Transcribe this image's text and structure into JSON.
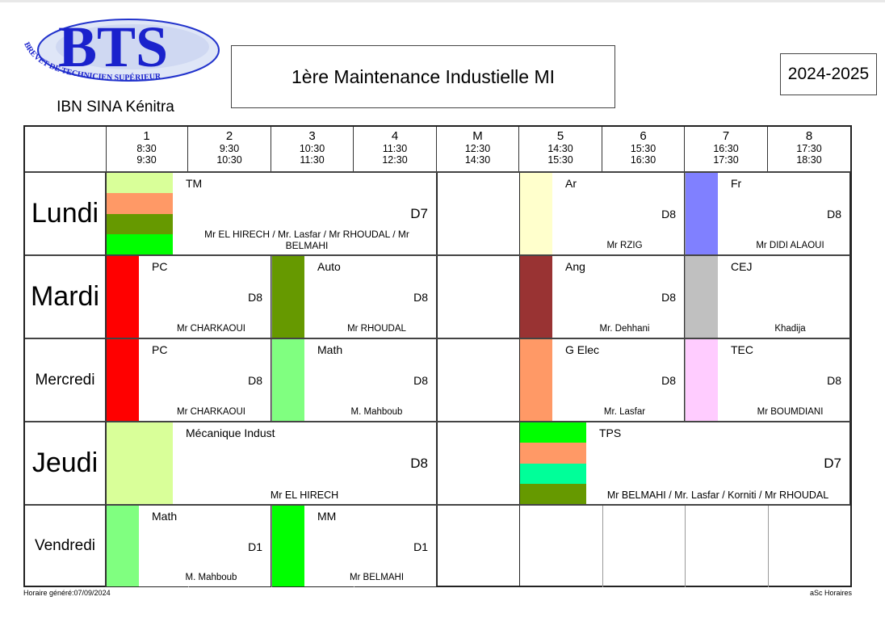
{
  "header": {
    "logo_text": "BTS",
    "logo_subtitle": "BREVET DE TECHNICIEN SUPÉRIEUR",
    "school": "IBN SINA Kénitra",
    "title": "1ère Maintenance Industielle MI",
    "year": "2024-2025"
  },
  "periods": [
    {
      "num": "1",
      "start": "8:30",
      "end": "9:30"
    },
    {
      "num": "2",
      "start": "9:30",
      "end": "10:30"
    },
    {
      "num": "3",
      "start": "10:30",
      "end": "11:30"
    },
    {
      "num": "4",
      "start": "11:30",
      "end": "12:30"
    },
    {
      "num": "M",
      "start": "12:30",
      "end": "14:30"
    },
    {
      "num": "5",
      "start": "14:30",
      "end": "15:30"
    },
    {
      "num": "6",
      "start": "15:30",
      "end": "16:30"
    },
    {
      "num": "7",
      "start": "16:30",
      "end": "17:30"
    },
    {
      "num": "8",
      "start": "17:30",
      "end": "18:30"
    }
  ],
  "days": [
    "Lundi",
    "Mardi",
    "Mercredi",
    "Jeudi",
    "Vendredi"
  ],
  "lessons": [
    {
      "day": 0,
      "start": 0,
      "span": 4,
      "subject": "TM",
      "room": "D7",
      "teacher": "Mr EL HIRECH / Mr. Lasfar / Mr RHOUDAL / Mr BELMAHI",
      "colors": [
        "#d9ff99",
        "#ff9966",
        "#669900",
        "#00ff00"
      ]
    },
    {
      "day": 0,
      "start": 5,
      "span": 2,
      "subject": "Ar",
      "room": "D8",
      "teacher": "Mr RZIG",
      "colors": [
        "#ffffcc"
      ]
    },
    {
      "day": 0,
      "start": 7,
      "span": 2,
      "subject": "Fr",
      "room": "D8",
      "teacher": "Mr DIDI ALAOUI",
      "colors": [
        "#8080ff"
      ]
    },
    {
      "day": 1,
      "start": 0,
      "span": 2,
      "subject": "PC",
      "room": "D8",
      "teacher": "Mr CHARKAOUI",
      "colors": [
        "#ff0000"
      ]
    },
    {
      "day": 1,
      "start": 2,
      "span": 2,
      "subject": "Auto",
      "room": "D8",
      "teacher": "Mr RHOUDAL",
      "colors": [
        "#669900"
      ]
    },
    {
      "day": 1,
      "start": 5,
      "span": 2,
      "subject": "Ang",
      "room": "D8",
      "teacher": "Mr. Dehhani",
      "colors": [
        "#993333"
      ]
    },
    {
      "day": 1,
      "start": 7,
      "span": 2,
      "subject": "CEJ",
      "room": "",
      "teacher": "Khadija",
      "colors": [
        "#c0c0c0"
      ]
    },
    {
      "day": 2,
      "start": 0,
      "span": 2,
      "subject": "PC",
      "room": "D8",
      "teacher": "Mr CHARKAOUI",
      "colors": [
        "#ff0000"
      ]
    },
    {
      "day": 2,
      "start": 2,
      "span": 2,
      "subject": "Math",
      "room": "D8",
      "teacher": "M. Mahboub",
      "colors": [
        "#80ff80"
      ]
    },
    {
      "day": 2,
      "start": 5,
      "span": 2,
      "subject": "G Elec",
      "room": "D8",
      "teacher": "Mr. Lasfar",
      "colors": [
        "#ff9966"
      ]
    },
    {
      "day": 2,
      "start": 7,
      "span": 2,
      "subject": "TEC",
      "room": "D8",
      "teacher": "Mr BOUMDIANI",
      "colors": [
        "#ffccff"
      ]
    },
    {
      "day": 3,
      "start": 0,
      "span": 4,
      "subject": "Mécanique Indust",
      "room": "D8",
      "teacher": "Mr EL HIRECH",
      "colors": [
        "#d9ff99"
      ]
    },
    {
      "day": 3,
      "start": 5,
      "span": 4,
      "subject": "TPS",
      "room": "D7",
      "teacher": "Mr BELMAHI / Mr. Lasfar / Korniti / Mr RHOUDAL",
      "colors": [
        "#00ff00",
        "#ff9966",
        "#00ff99",
        "#669900"
      ]
    },
    {
      "day": 4,
      "start": 0,
      "span": 2,
      "subject": "Math",
      "room": "D1",
      "teacher": "M. Mahboub",
      "colors": [
        "#80ff80"
      ]
    },
    {
      "day": 4,
      "start": 2,
      "span": 2,
      "subject": "MM",
      "room": "D1",
      "teacher": "Mr BELMAHI",
      "colors": [
        "#00ff00"
      ]
    }
  ],
  "footer": {
    "generated": "Horaire généré:07/09/2024",
    "software": "aSc Horaires"
  }
}
